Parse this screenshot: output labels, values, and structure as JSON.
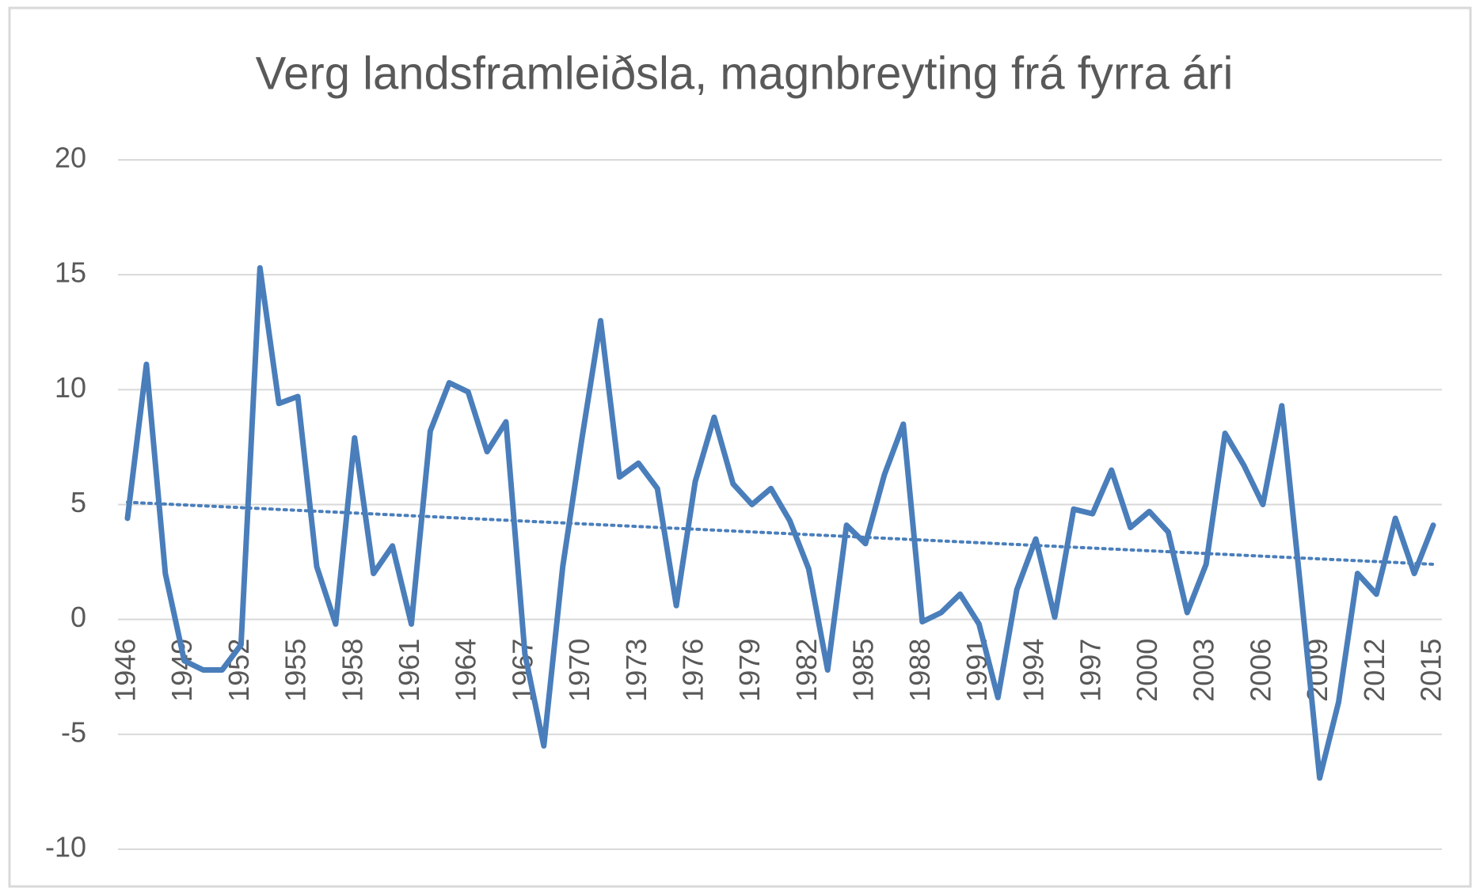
{
  "chart_data": {
    "type": "line",
    "title": "Verg landsframleiðsla, magnbreyting frá fyrra ári",
    "categories": [
      "1946",
      null,
      null,
      "1949",
      null,
      null,
      "1952",
      null,
      null,
      "1955",
      null,
      null,
      "1958",
      null,
      null,
      "1961",
      null,
      null,
      "1964",
      null,
      null,
      "1967",
      null,
      null,
      "1970",
      null,
      null,
      "1973",
      null,
      null,
      "1976",
      null,
      null,
      "1979",
      null,
      null,
      "1982",
      null,
      null,
      "1985",
      null,
      null,
      "1988",
      null,
      null,
      "1991",
      null,
      null,
      "1994",
      null,
      null,
      "1997",
      null,
      null,
      "2000",
      null,
      null,
      "2003",
      null,
      null,
      "2006",
      null,
      null,
      "2009",
      null,
      null,
      "2012",
      null,
      null,
      "2015"
    ],
    "series": [
      {
        "color": "#4a7ebb",
        "values": [
          4.4,
          11.1,
          2.0,
          -1.8,
          -2.2,
          -2.2,
          -1.1,
          15.3,
          9.4,
          9.7,
          2.3,
          -0.2,
          7.9,
          2.0,
          3.2,
          -0.2,
          8.2,
          10.3,
          9.9,
          7.3,
          8.6,
          -1.5,
          -5.5,
          2.3,
          7.8,
          13.0,
          6.2,
          6.8,
          5.7,
          0.6,
          6.0,
          8.8,
          5.9,
          5.0,
          5.7,
          4.3,
          2.2,
          -2.2,
          4.1,
          3.3,
          6.3,
          8.5,
          -0.1,
          0.3,
          1.1,
          -0.2,
          -3.4,
          1.3,
          3.5,
          0.1,
          4.8,
          4.6,
          6.5,
          4.0,
          4.7,
          3.8,
          0.3,
          2.4,
          8.1,
          6.7,
          5.0,
          9.3,
          1.3,
          -6.9,
          -3.6,
          2.0,
          1.1,
          4.4,
          2.0,
          4.1
        ]
      }
    ],
    "trendline": {
      "start": 5.1,
      "end": 2.4,
      "color": "#4a7ebb",
      "style": "dotted"
    },
    "ylim": [
      -10,
      20
    ],
    "yticks": [
      -10,
      -5,
      0,
      5,
      10,
      15,
      20
    ],
    "grid": true
  }
}
